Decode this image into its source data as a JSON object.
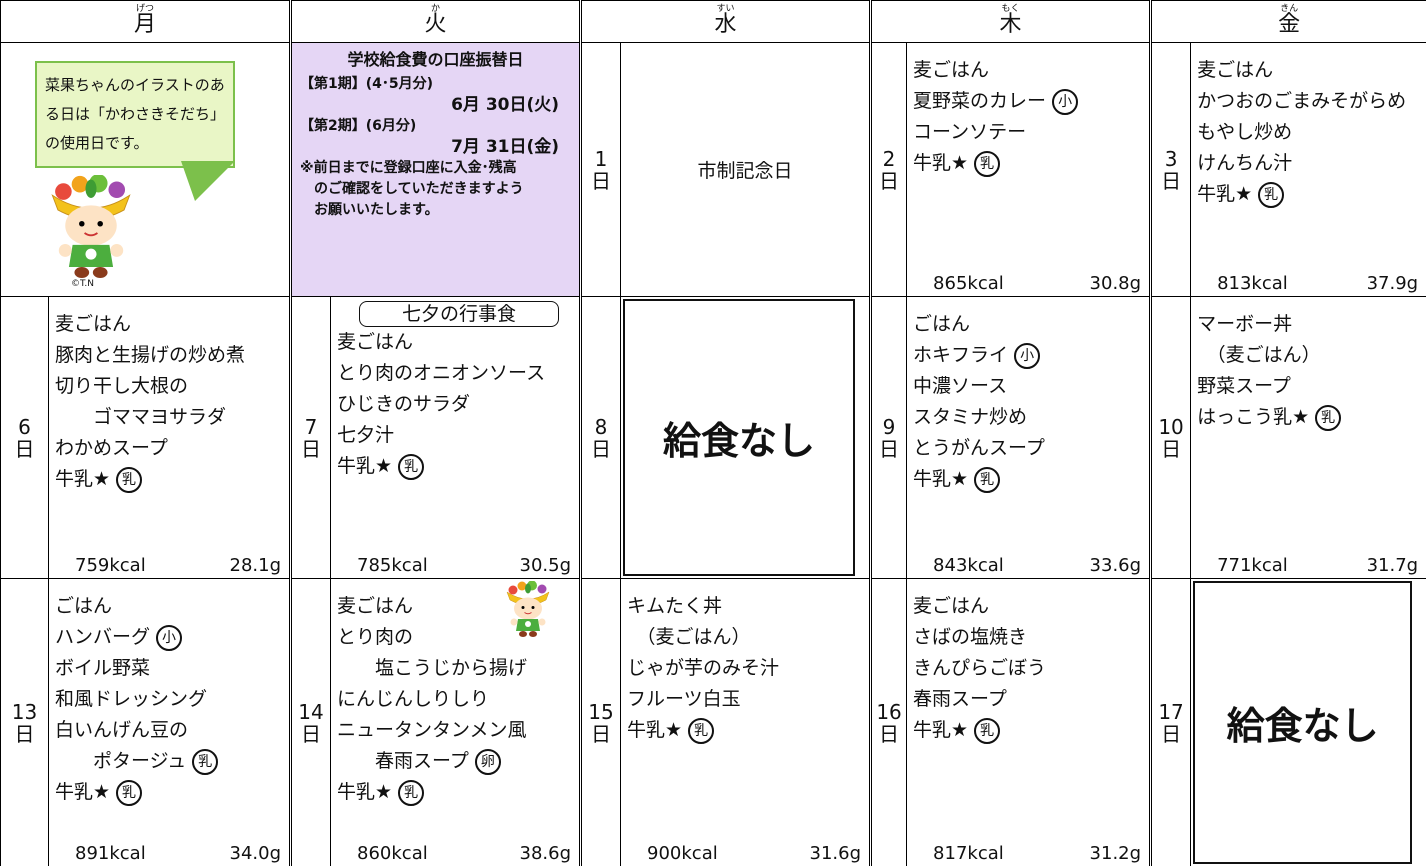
{
  "header": {
    "days": [
      {
        "label": "月",
        "ruby": "げつ"
      },
      {
        "label": "火",
        "ruby": "か"
      },
      {
        "label": "水",
        "ruby": "すい"
      },
      {
        "label": "木",
        "ruby": "もく"
      },
      {
        "label": "金",
        "ruby": "きん"
      }
    ]
  },
  "date_suffix": "日",
  "notes": {
    "callout": "菜果ちゃんのイラストのある日は「かわさきそだち」の使用日です。",
    "credit": "©T.N",
    "payment": {
      "title": "学校給食費の口座振替日",
      "lines": [
        "【第1期】(4･5月分)",
        "6月 30日(火)",
        "【第2期】(6月分)",
        "7月 31日(金)"
      ],
      "notice": [
        "※前日までに登録口座に入金･残高",
        "のご確認をしていただきますよう",
        "お願いいたします。"
      ]
    }
  },
  "weeks": [
    [
      {
        "date": "1",
        "event": "市制記念日"
      },
      {
        "date": "2",
        "menu": [
          {
            "text": "麦ごはん"
          },
          {
            "text": "夏野菜のカレー",
            "mark": "小"
          },
          {
            "text": "コーンソテー"
          },
          {
            "text": "牛乳★",
            "mark": "乳"
          }
        ],
        "kcal": "865kcal",
        "protein": "30.8g"
      },
      {
        "date": "3",
        "menu": [
          {
            "text": "麦ごはん"
          },
          {
            "text": "かつおのごまみそがらめ"
          },
          {
            "text": "もやし炒め"
          },
          {
            "text": "けんちん汁"
          },
          {
            "text": "牛乳★",
            "mark": "乳"
          }
        ],
        "kcal": "813kcal",
        "protein": "37.9g"
      }
    ],
    [
      {
        "date": "6",
        "menu": [
          {
            "text": "麦ごはん"
          },
          {
            "text": "豚肉と生揚げの炒め煮"
          },
          {
            "text": "切り干し大根の"
          },
          {
            "text": "　　ゴママヨサラダ"
          },
          {
            "text": "わかめスープ"
          },
          {
            "text": "牛乳★",
            "mark": "乳"
          }
        ],
        "kcal": "759kcal",
        "protein": "28.1g"
      },
      {
        "date": "7",
        "banner": "七夕の行事食",
        "menu": [
          {
            "text": "麦ごはん"
          },
          {
            "text": "とり肉のオニオンソース"
          },
          {
            "text": "ひじきのサラダ"
          },
          {
            "text": "七夕汁"
          },
          {
            "text": "牛乳★",
            "mark": "乳"
          }
        ],
        "kcal": "785kcal",
        "protein": "30.5g"
      },
      {
        "date": "8",
        "closed": "給食なし"
      },
      {
        "date": "9",
        "menu": [
          {
            "text": "ごはん"
          },
          {
            "text": "ホキフライ",
            "mark": "小"
          },
          {
            "text": "中濃ソース"
          },
          {
            "text": "スタミナ炒め"
          },
          {
            "text": "とうがんスープ"
          },
          {
            "text": "牛乳★",
            "mark": "乳"
          }
        ],
        "kcal": "843kcal",
        "protein": "33.6g"
      },
      {
        "date": "10",
        "menu": [
          {
            "text": "マーボー丼"
          },
          {
            "text": "　（麦ごはん）"
          },
          {
            "text": "野菜スープ"
          },
          {
            "text": "はっこう乳★",
            "mark": "乳"
          }
        ],
        "kcal": "771kcal",
        "protein": "31.7g"
      }
    ],
    [
      {
        "date": "13",
        "menu": [
          {
            "text": "ごはん"
          },
          {
            "text": "ハンバーグ",
            "mark": "小"
          },
          {
            "text": "ボイル野菜"
          },
          {
            "text": "和風ドレッシング"
          },
          {
            "text": "白いんげん豆の"
          },
          {
            "text": "　　ポタージュ",
            "mark": "乳"
          },
          {
            "text": "牛乳★",
            "mark": "乳"
          }
        ],
        "kcal": "891kcal",
        "protein": "34.0g"
      },
      {
        "date": "14",
        "mascot": true,
        "menu": [
          {
            "text": "麦ごはん"
          },
          {
            "text": "とり肉の"
          },
          {
            "text": "　　塩こうじから揚げ"
          },
          {
            "text": "にんじんしりしり"
          },
          {
            "text": "ニュータンタンメン風"
          },
          {
            "text": "　　春雨スープ",
            "mark": "卵"
          },
          {
            "text": "牛乳★",
            "mark": "乳"
          }
        ],
        "kcal": "860kcal",
        "protein": "38.6g"
      },
      {
        "date": "15",
        "menu": [
          {
            "text": "キムたく丼"
          },
          {
            "text": "　（麦ごはん）"
          },
          {
            "text": "じゃが芋のみそ汁"
          },
          {
            "text": "フルーツ白玉"
          },
          {
            "text": "牛乳★",
            "mark": "乳"
          }
        ],
        "kcal": "900kcal",
        "protein": "31.6g"
      },
      {
        "date": "16",
        "menu": [
          {
            "text": "麦ごはん"
          },
          {
            "text": "さばの塩焼き"
          },
          {
            "text": "きんぴらごぼう"
          },
          {
            "text": "春雨スープ"
          },
          {
            "text": "牛乳★",
            "mark": "乳"
          }
        ],
        "kcal": "817kcal",
        "protein": "31.2g"
      },
      {
        "date": "17",
        "closed": "給食なし"
      }
    ]
  ]
}
